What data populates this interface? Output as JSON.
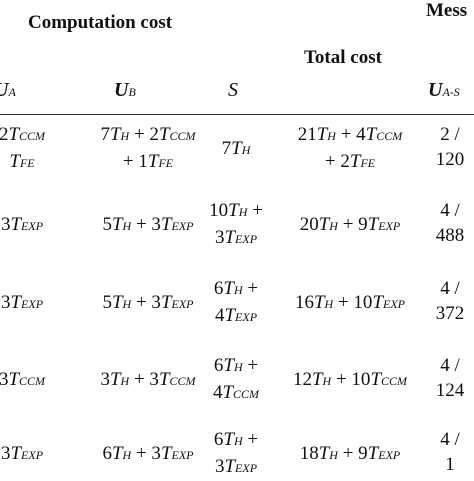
{
  "headers": {
    "computation_cost": "Computation cost",
    "messages": "Mess",
    "total_cost": "Total cost"
  },
  "columns": {
    "ua": "A",
    "ub": "B",
    "s": "S",
    "uas": "A-S"
  },
  "rows": [
    {
      "ua": [
        "2TCCM",
        "TFE"
      ],
      "ub": [
        "7TH + 2TCCM",
        "+ 1TFE"
      ],
      "s": [
        "7TH"
      ],
      "total": [
        "21TH + 4TCCM",
        "+ 2TFE"
      ],
      "msg": [
        "2 /",
        "120"
      ]
    },
    {
      "ua": [
        "3TEXP"
      ],
      "ub": [
        "5TH + 3TEXP"
      ],
      "s": [
        "10TH +",
        "3TEXP"
      ],
      "total": [
        "20TH + 9TEXP"
      ],
      "msg": [
        "4 /",
        "488"
      ]
    },
    {
      "ua": [
        "3TEXP"
      ],
      "ub": [
        "5TH + 3TEXP"
      ],
      "s": [
        "6TH +",
        "4TEXP"
      ],
      "total": [
        "16TH + 10TEXP"
      ],
      "msg": [
        "4 /",
        "372"
      ]
    },
    {
      "ua": [
        "3TCCM"
      ],
      "ub": [
        "3TH + 3TCCM"
      ],
      "s": [
        "6TH +",
        "4TCCM"
      ],
      "total": [
        "12TH + 10TCCM"
      ],
      "msg": [
        "4 /",
        "124"
      ]
    },
    {
      "ua": [
        "3TEXP"
      ],
      "ub": [
        "6TH + 3TEXP"
      ],
      "s": [
        "6TH +",
        "3TEXP"
      ],
      "total": [
        "18TH + 9TEXP"
      ],
      "msg": [
        "4 /",
        "1"
      ]
    }
  ]
}
